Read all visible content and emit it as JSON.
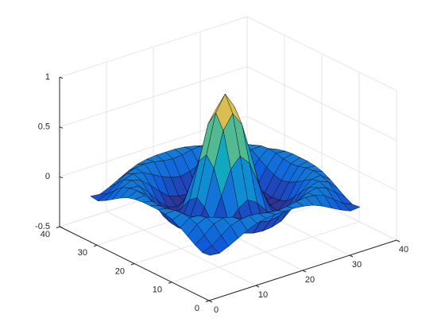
{
  "chart_data": {
    "type": "surface",
    "x": [
      1,
      3,
      5,
      7,
      9,
      11,
      13,
      15,
      17,
      19,
      21,
      23,
      25,
      27,
      29,
      31,
      33
    ],
    "y": [
      1,
      3,
      5,
      7,
      9,
      11,
      13,
      15,
      17,
      19,
      21,
      23,
      25,
      27,
      29,
      31,
      33
    ],
    "z": [
      [
        -0.08,
        -0.09,
        -0.05,
        0,
        0.05,
        0.09,
        0.11,
        0.12,
        0.12,
        0.12,
        0.11,
        0.09,
        0.05,
        0,
        -0.05,
        -0.09,
        -0.08
      ],
      [
        -0.09,
        -0.05,
        0.02,
        0.09,
        0.12,
        0.13,
        0.12,
        0.1,
        0.09,
        0.1,
        0.12,
        0.13,
        0.12,
        0.09,
        0.02,
        -0.05,
        -0.09
      ],
      [
        -0.05,
        0.02,
        0.1,
        0.13,
        0.11,
        0.06,
        0.01,
        -0.03,
        -0.05,
        -0.03,
        0.01,
        0.06,
        0.11,
        0.13,
        0.1,
        0.02,
        -0.05
      ],
      [
        0,
        0.09,
        0.13,
        0.1,
        0.02,
        -0.07,
        -0.15,
        -0.18,
        -0.19,
        -0.18,
        -0.15,
        -0.07,
        0.02,
        0.1,
        0.13,
        0.09,
        0
      ],
      [
        0.05,
        0.12,
        0.11,
        0.02,
        -0.1,
        -0.19,
        -0.22,
        -0.2,
        -0.19,
        -0.2,
        -0.22,
        -0.19,
        -0.1,
        0.02,
        0.11,
        0.12,
        0.05
      ],
      [
        0.09,
        0.13,
        0.06,
        -0.07,
        -0.19,
        -0.21,
        -0.12,
        -0.01,
        0.05,
        -0.01,
        -0.12,
        -0.21,
        -0.19,
        -0.07,
        0.06,
        0.13,
        0.09
      ],
      [
        0.11,
        0.12,
        0.01,
        -0.15,
        -0.22,
        -0.12,
        0.11,
        0.35,
        0.45,
        0.35,
        0.11,
        -0.12,
        -0.22,
        -0.15,
        0.01,
        0.12,
        0.11
      ],
      [
        0.12,
        0.1,
        -0.03,
        -0.18,
        -0.2,
        -0.01,
        0.35,
        0.7,
        0.84,
        0.7,
        0.35,
        -0.01,
        -0.2,
        -0.18,
        -0.03,
        0.1,
        0.12
      ],
      [
        0.12,
        0.09,
        -0.05,
        -0.19,
        -0.19,
        0.05,
        0.45,
        0.84,
        1,
        0.84,
        0.45,
        0.05,
        -0.19,
        -0.19,
        -0.05,
        0.09,
        0.12
      ],
      [
        0.12,
        0.1,
        -0.03,
        -0.18,
        -0.2,
        -0.01,
        0.35,
        0.7,
        0.84,
        0.7,
        0.35,
        -0.01,
        -0.2,
        -0.18,
        -0.03,
        0.1,
        0.12
      ],
      [
        0.11,
        0.12,
        0.01,
        -0.15,
        -0.22,
        -0.12,
        0.11,
        0.35,
        0.45,
        0.35,
        0.11,
        -0.12,
        -0.22,
        -0.15,
        0.01,
        0.12,
        0.11
      ],
      [
        0.09,
        0.13,
        0.06,
        -0.07,
        -0.19,
        -0.21,
        -0.12,
        -0.01,
        0.05,
        -0.01,
        -0.12,
        -0.21,
        -0.19,
        -0.07,
        0.06,
        0.13,
        0.09
      ],
      [
        0.05,
        0.12,
        0.11,
        0.02,
        -0.1,
        -0.19,
        -0.22,
        -0.2,
        -0.19,
        -0.2,
        -0.22,
        -0.19,
        -0.1,
        0.02,
        0.11,
        0.12,
        0.05
      ],
      [
        0,
        0.09,
        0.13,
        0.1,
        0.02,
        -0.07,
        -0.15,
        -0.18,
        -0.19,
        -0.18,
        -0.15,
        -0.07,
        0.02,
        0.1,
        0.13,
        0.09,
        0
      ],
      [
        -0.05,
        0.02,
        0.1,
        0.13,
        0.11,
        0.06,
        0.01,
        -0.03,
        -0.05,
        -0.03,
        0.01,
        0.06,
        0.11,
        0.13,
        0.1,
        0.02,
        -0.05
      ],
      [
        -0.09,
        -0.05,
        0.02,
        0.09,
        0.12,
        0.13,
        0.12,
        0.1,
        0.09,
        0.1,
        0.12,
        0.13,
        0.12,
        0.09,
        0.02,
        -0.05,
        -0.09
      ],
      [
        -0.08,
        -0.09,
        -0.05,
        0,
        0.05,
        0.09,
        0.11,
        0.12,
        0.12,
        0.12,
        0.11,
        0.09,
        0.05,
        0,
        -0.05,
        -0.09,
        -0.08
      ]
    ],
    "xlim": [
      0,
      40
    ],
    "ylim": [
      0,
      40
    ],
    "zlim": [
      -0.5,
      1
    ],
    "xticks": [
      0,
      10,
      20,
      30,
      40
    ],
    "yticks": [
      0,
      10,
      20,
      30,
      40
    ],
    "zticks": [
      -0.5,
      0,
      0.5,
      1
    ],
    "grid": true,
    "colormap": "parula",
    "edgecolor": "#000000"
  }
}
